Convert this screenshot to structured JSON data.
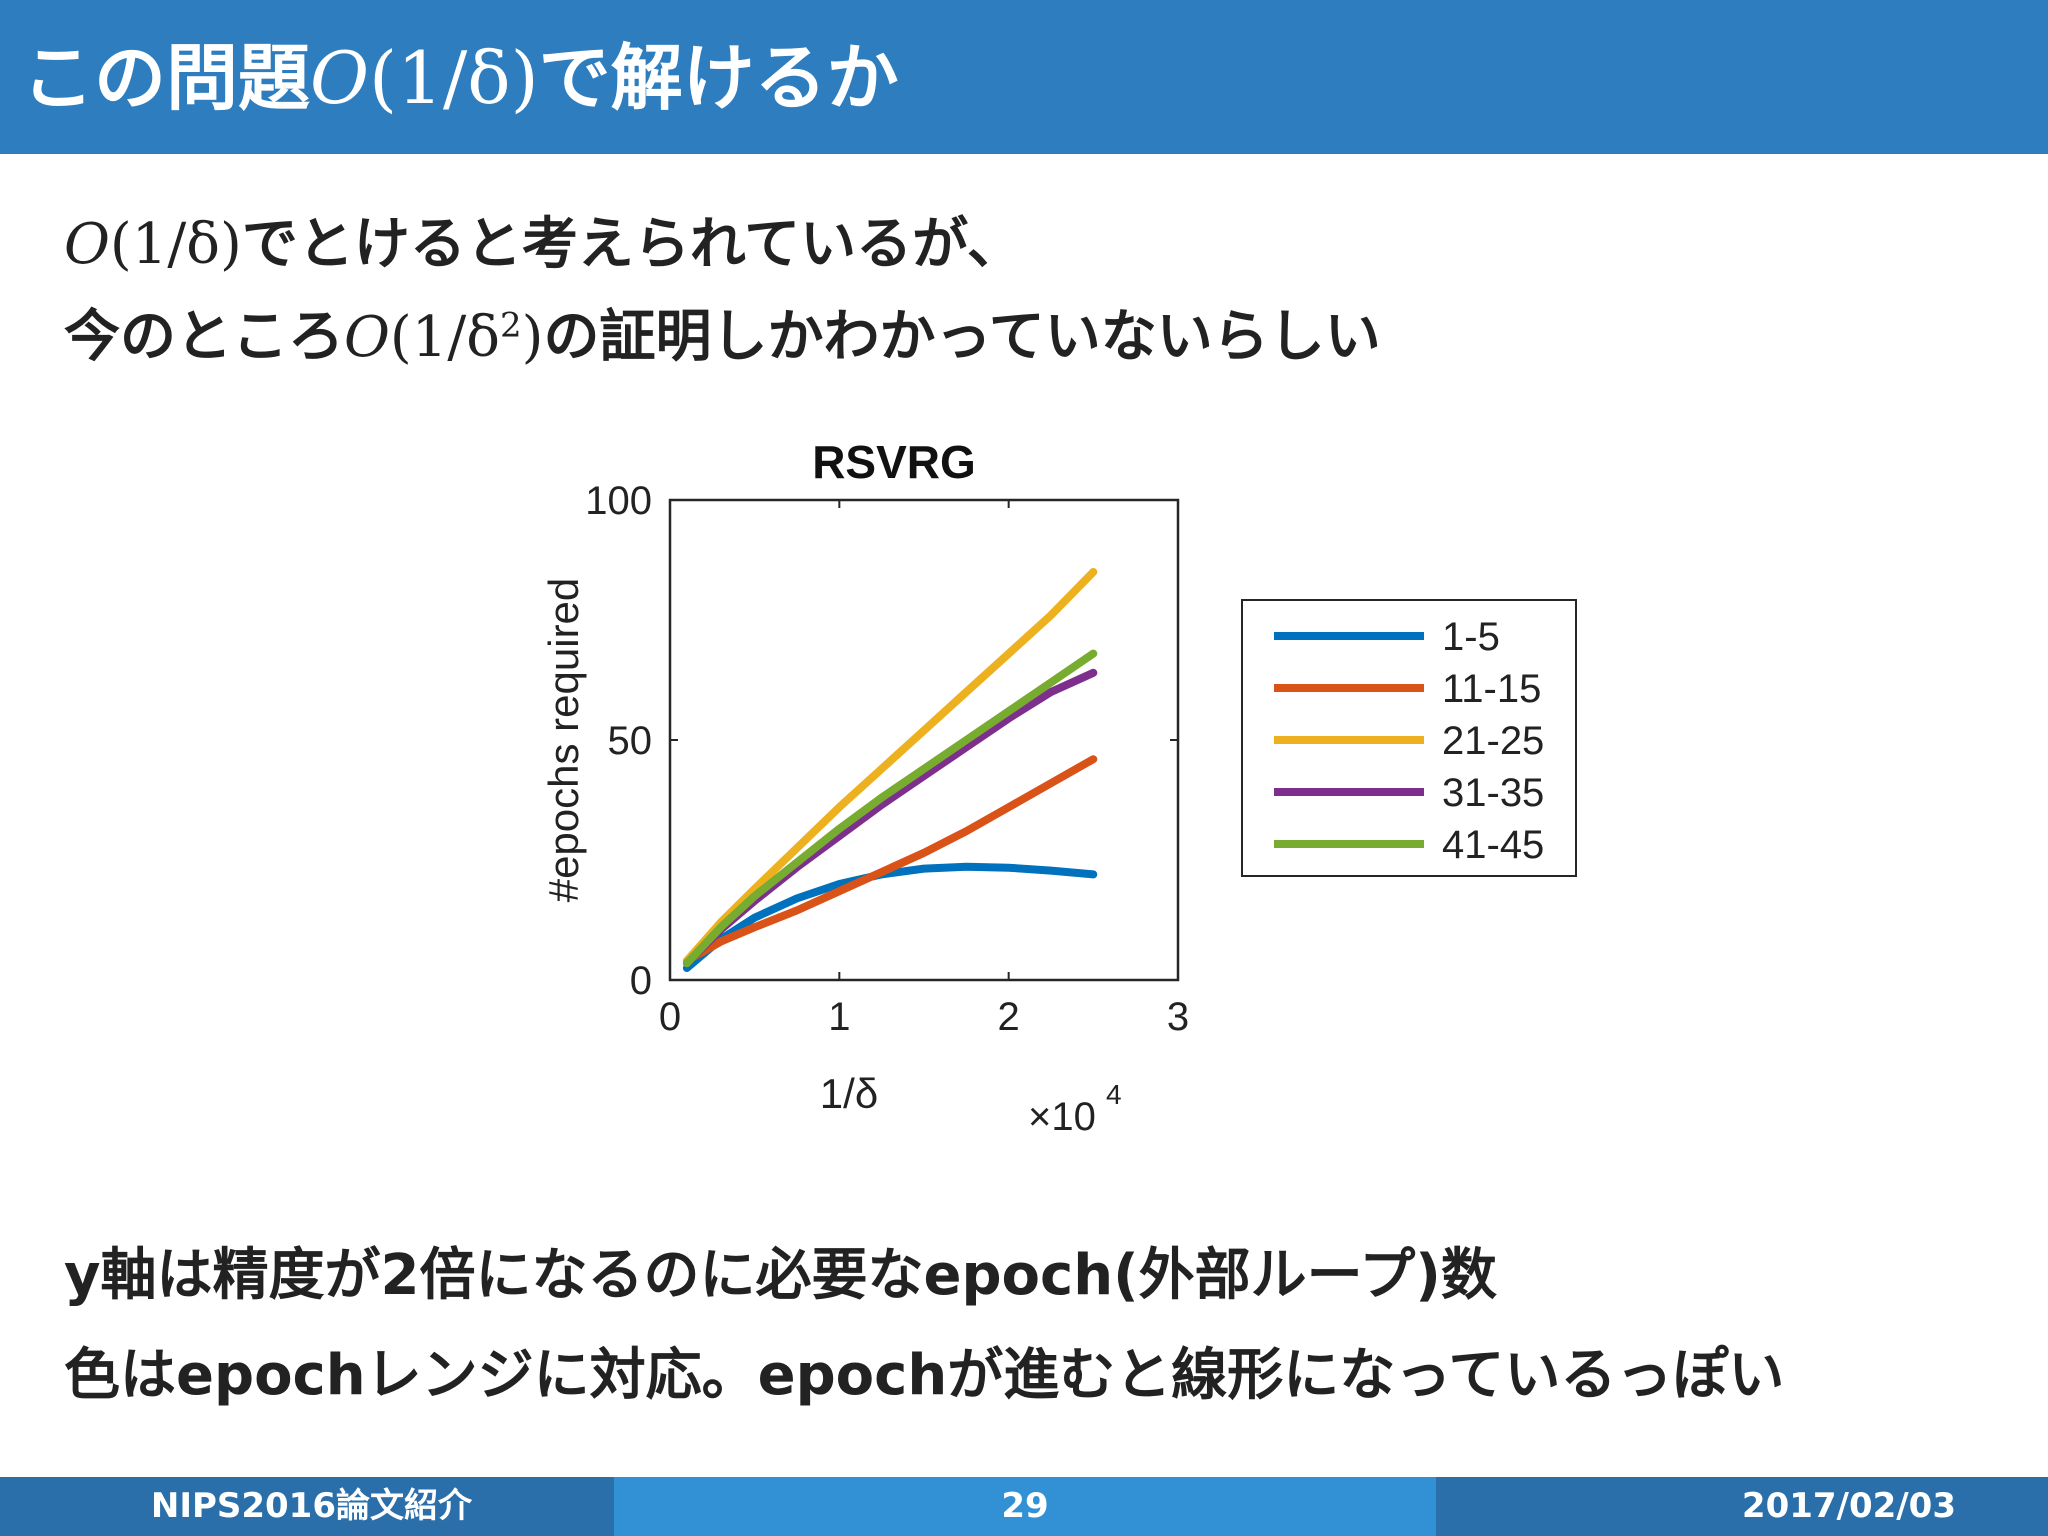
{
  "slide": {
    "title_prefix": "この問題",
    "title_math": "1/δ",
    "title_suffix": "で解けるか",
    "intro": {
      "line1_math": "1/δ",
      "line1_text": "でとけると考えられているが、",
      "line2_prefix": "今のところ",
      "line2_math_base": "1/δ",
      "line2_math_exp": "2",
      "line2_suffix": "の証明しかわかっていないらしい"
    },
    "notes": [
      "y軸は精度が2倍になるのに必要なepoch(外部ループ)数",
      "色はepochレンジに対応。epochが進むと線形になっているっぽい"
    ]
  },
  "footer": {
    "left": "NIPS2016論文紹介",
    "page": "29",
    "date": "2017/02/03"
  },
  "chart_data": {
    "type": "line",
    "title": "RSVRG",
    "xlabel": "1/δ",
    "x_multiplier": "×10",
    "x_multiplier_exp": "4",
    "ylabel": "#epochs required",
    "xlim": [
      0,
      3
    ],
    "ylim": [
      0,
      100
    ],
    "xticks": [
      "0",
      "1",
      "2",
      "3"
    ],
    "yticks": [
      "0",
      "50",
      "100"
    ],
    "legend_position": "right",
    "x": [
      0.1,
      0.3,
      0.5,
      0.75,
      1.0,
      1.25,
      1.5,
      1.75,
      2.0,
      2.25,
      2.5
    ],
    "series": [
      {
        "name": "1-5",
        "color": "#0072bd",
        "values": [
          2.5,
          8.5,
          13,
          17,
          20,
          22,
          23.2,
          23.6,
          23.4,
          22.8,
          22
        ]
      },
      {
        "name": "11-15",
        "color": "#d95319",
        "values": [
          4,
          8,
          11,
          14.5,
          18.5,
          22.5,
          26.5,
          31,
          36,
          41,
          46
        ]
      },
      {
        "name": "21-25",
        "color": "#edb120",
        "values": [
          4,
          12,
          19,
          27.5,
          36,
          44,
          52,
          60,
          68,
          76,
          85
        ]
      },
      {
        "name": "31-35",
        "color": "#7e2f8e",
        "values": [
          3.5,
          10.5,
          16.5,
          23.5,
          30,
          36.5,
          42.5,
          48.5,
          54.5,
          60,
          64
        ]
      },
      {
        "name": "41-45",
        "color": "#77ac30",
        "values": [
          3.5,
          11,
          17.5,
          24.5,
          31.5,
          38,
          44,
          50,
          56,
          62,
          68
        ]
      }
    ]
  }
}
